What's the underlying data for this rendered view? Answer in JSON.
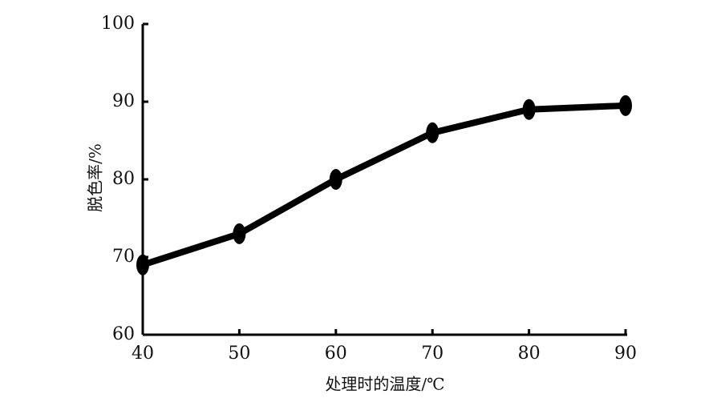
{
  "chart_data": {
    "type": "line",
    "x_label": "处理时的温度/℃",
    "y_label": "脱色率/%",
    "x": [
      40,
      50,
      60,
      70,
      80,
      90
    ],
    "values": [
      69,
      73,
      80,
      86,
      89,
      89.5
    ],
    "color": "#000000",
    "xlim": [
      40,
      90
    ],
    "xticks": [
      40,
      50,
      60,
      70,
      80,
      90
    ],
    "ylim": [
      60,
      100
    ],
    "yticks": [
      60,
      70,
      80,
      90,
      100
    ]
  }
}
